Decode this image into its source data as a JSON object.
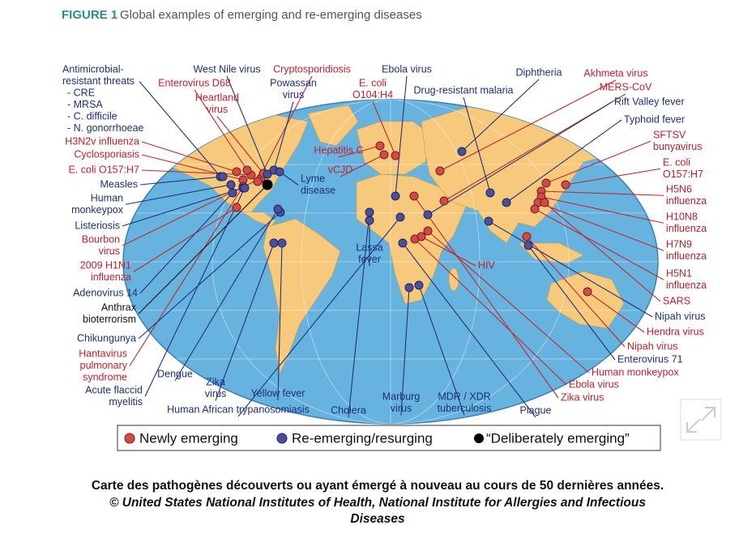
{
  "figure_label": "FIGURE 1",
  "title": "Global examples of emerging and re-emerging diseases",
  "newly_emerging_labels": [
    {
      "lines": [
        "H3N2v influenza"
      ]
    },
    {
      "lines": [
        "Cyclosporiasis"
      ]
    },
    {
      "lines": [
        "E. coli O157:H7"
      ]
    },
    {
      "lines": [
        "Bourbon",
        "virus"
      ]
    },
    {
      "lines": [
        "2009 H1N1",
        "influenza"
      ]
    },
    {
      "lines": [
        "Hantavirus",
        "pulmonary",
        "syndrome"
      ]
    },
    {
      "lines": [
        "Enterovirus D68"
      ]
    },
    {
      "lines": [
        "Heartland",
        "virus"
      ]
    },
    {
      "lines": [
        "Cryptosporidiosis"
      ]
    },
    {
      "lines": [
        "E. coli",
        "O104:H4"
      ]
    },
    {
      "lines": [
        "Hepatitis C"
      ]
    },
    {
      "lines": [
        "vCJD"
      ]
    },
    {
      "lines": [
        "Akhmeta virus"
      ]
    },
    {
      "lines": [
        "MERS-CoV"
      ]
    },
    {
      "lines": [
        "SFTSV",
        "bunyavirus"
      ]
    },
    {
      "lines": [
        "E. coli",
        "O157:H7"
      ]
    },
    {
      "lines": [
        "H5N6",
        "influenza"
      ]
    },
    {
      "lines": [
        "H10N8",
        "influenza"
      ]
    },
    {
      "lines": [
        "H7N9",
        "influenza"
      ]
    },
    {
      "lines": [
        "H5N1",
        "influenza"
      ]
    },
    {
      "lines": [
        "SARS"
      ]
    },
    {
      "lines": [
        "Hendra virus"
      ]
    },
    {
      "lines": [
        "Nipah virus"
      ]
    },
    {
      "lines": [
        "Human monkeypox"
      ]
    },
    {
      "lines": [
        "Ebola virus"
      ]
    },
    {
      "lines": [
        "Zika virus"
      ]
    },
    {
      "lines": [
        "HIV"
      ]
    }
  ],
  "re_emerging_labels": [
    {
      "lines": [
        "Antimicrobial-",
        "resistant threats",
        "- CRE",
        "- MRSA",
        "- C. difficile",
        "- N. gonorrhoeae"
      ]
    },
    {
      "lines": [
        "Measles"
      ]
    },
    {
      "lines": [
        "Human",
        "monkeypox"
      ]
    },
    {
      "lines": [
        "Listeriosis"
      ]
    },
    {
      "lines": [
        "Adenovirus 14"
      ]
    },
    {
      "lines": [
        "Chikungunya"
      ]
    },
    {
      "lines": [
        "Dengue"
      ]
    },
    {
      "lines": [
        "Acute flaccid",
        "myelitis"
      ]
    },
    {
      "lines": [
        "Zika",
        "virus"
      ]
    },
    {
      "lines": [
        "Yellow fever"
      ]
    },
    {
      "lines": [
        "Human African trypanosomiasis"
      ]
    },
    {
      "lines": [
        "Cholera"
      ]
    },
    {
      "lines": [
        "Marburg",
        "virus"
      ]
    },
    {
      "lines": [
        "MDR / XDR",
        "tuberculosis"
      ]
    },
    {
      "lines": [
        "Plague"
      ]
    },
    {
      "lines": [
        "Lassa",
        "fever"
      ]
    },
    {
      "lines": [
        "West Nile virus"
      ]
    },
    {
      "lines": [
        "Powassan",
        "virus"
      ]
    },
    {
      "lines": [
        "Ebola virus"
      ]
    },
    {
      "lines": [
        "Drug-resistant malaria"
      ]
    },
    {
      "lines": [
        "Diphtheria"
      ]
    },
    {
      "lines": [
        "Rift Valley fever"
      ]
    },
    {
      "lines": [
        "Typhoid fever"
      ]
    },
    {
      "lines": [
        "Nipah virus"
      ]
    },
    {
      "lines": [
        "Enterovirus 71"
      ]
    },
    {
      "lines": [
        "Lyme",
        "disease"
      ]
    }
  ],
  "deliberately_emerging_labels": [
    {
      "lines": [
        "Anthrax",
        "bioterrorism"
      ]
    }
  ],
  "legend": [
    "Newly emerging",
    "Re-emerging/resurging",
    "“Deliberately emerging”"
  ],
  "caption": [
    "Carte des pathogènes découverts ou ayant émergé à nouveau au cours de 50 dernières années.",
    "© United States National Institutes of Health, National Institute for Allergies and Infectious",
    "Diseases"
  ]
}
